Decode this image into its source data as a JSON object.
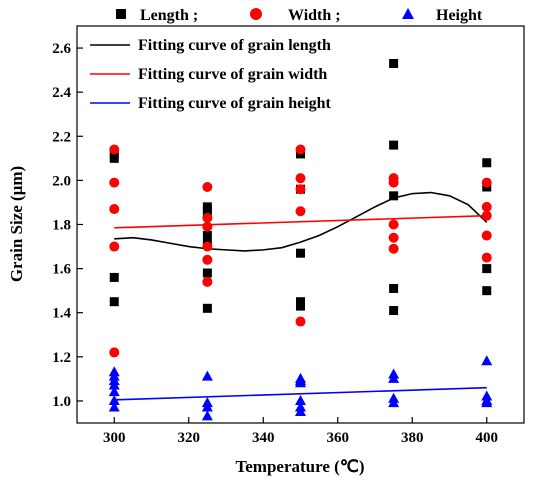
{
  "chart_data": {
    "type": "scatter",
    "title": "",
    "xlabel": "Temperature (℃)",
    "ylabel": "Grain Size (μm)",
    "xlim": [
      290,
      410
    ],
    "ylim": [
      0.9,
      2.7
    ],
    "xticks": [
      300,
      320,
      340,
      360,
      380,
      400
    ],
    "yticks": [
      1.0,
      1.2,
      1.4,
      1.6,
      1.8,
      2.0,
      2.2,
      2.4,
      2.6
    ],
    "grid": false,
    "legend_position": "top",
    "legend_markers": [
      "Length ;",
      "Width ;",
      "Height"
    ],
    "series": [
      {
        "name": "Length ;",
        "marker": "square",
        "color": "#000000",
        "points": [
          [
            300,
            2.1
          ],
          [
            300,
            2.12
          ],
          [
            300,
            1.56
          ],
          [
            300,
            1.45
          ],
          [
            325,
            1.88
          ],
          [
            325,
            1.86
          ],
          [
            325,
            1.75
          ],
          [
            325,
            1.71
          ],
          [
            325,
            1.58
          ],
          [
            325,
            1.42
          ],
          [
            350,
            2.12
          ],
          [
            350,
            1.96
          ],
          [
            350,
            1.67
          ],
          [
            350,
            1.45
          ],
          [
            350,
            1.43
          ],
          [
            375,
            2.53
          ],
          [
            375,
            2.16
          ],
          [
            375,
            1.93
          ],
          [
            375,
            1.51
          ],
          [
            375,
            1.41
          ],
          [
            400,
            2.08
          ],
          [
            400,
            1.97
          ],
          [
            400,
            1.6
          ],
          [
            400,
            1.5
          ]
        ]
      },
      {
        "name": "Width ;",
        "marker": "circle",
        "color": "#ff0000",
        "points": [
          [
            300,
            2.14
          ],
          [
            300,
            1.99
          ],
          [
            300,
            1.87
          ],
          [
            300,
            1.7
          ],
          [
            300,
            1.22
          ],
          [
            325,
            1.97
          ],
          [
            325,
            1.83
          ],
          [
            325,
            1.79
          ],
          [
            325,
            1.7
          ],
          [
            325,
            1.64
          ],
          [
            325,
            1.54
          ],
          [
            350,
            2.14
          ],
          [
            350,
            2.01
          ],
          [
            350,
            1.96
          ],
          [
            350,
            1.86
          ],
          [
            350,
            1.36
          ],
          [
            375,
            2.01
          ],
          [
            375,
            1.99
          ],
          [
            375,
            1.8
          ],
          [
            375,
            1.74
          ],
          [
            375,
            1.69
          ],
          [
            400,
            1.99
          ],
          [
            400,
            1.88
          ],
          [
            400,
            1.84
          ],
          [
            400,
            1.75
          ],
          [
            400,
            1.65
          ]
        ]
      },
      {
        "name": "Height",
        "marker": "triangle",
        "color": "#0000ff",
        "points": [
          [
            300,
            1.13
          ],
          [
            300,
            1.11
          ],
          [
            300,
            1.09
          ],
          [
            300,
            1.07
          ],
          [
            300,
            1.04
          ],
          [
            300,
            1.0
          ],
          [
            300,
            0.97
          ],
          [
            325,
            1.11
          ],
          [
            325,
            0.99
          ],
          [
            325,
            0.97
          ],
          [
            325,
            0.93
          ],
          [
            350,
            1.1
          ],
          [
            350,
            1.09
          ],
          [
            350,
            1.08
          ],
          [
            350,
            1.0
          ],
          [
            350,
            0.97
          ],
          [
            350,
            0.95
          ],
          [
            375,
            1.12
          ],
          [
            375,
            1.1
          ],
          [
            375,
            1.01
          ],
          [
            375,
            0.99
          ],
          [
            400,
            1.18
          ],
          [
            400,
            1.02
          ],
          [
            400,
            1.0
          ],
          [
            400,
            0.99
          ]
        ]
      }
    ],
    "fits": [
      {
        "name": "Fitting curve of grain length",
        "color": "#000000",
        "points": [
          [
            300,
            1.735
          ],
          [
            305,
            1.74
          ],
          [
            310,
            1.73
          ],
          [
            315,
            1.715
          ],
          [
            320,
            1.7
          ],
          [
            325,
            1.69
          ],
          [
            330,
            1.685
          ],
          [
            335,
            1.68
          ],
          [
            340,
            1.685
          ],
          [
            345,
            1.695
          ],
          [
            350,
            1.72
          ],
          [
            355,
            1.75
          ],
          [
            360,
            1.79
          ],
          [
            365,
            1.835
          ],
          [
            370,
            1.88
          ],
          [
            375,
            1.92
          ],
          [
            380,
            1.94
          ],
          [
            385,
            1.945
          ],
          [
            390,
            1.93
          ],
          [
            395,
            1.89
          ],
          [
            400,
            1.81
          ]
        ]
      },
      {
        "name": "Fitting curve of grain width",
        "color": "#ff0000",
        "points": [
          [
            300,
            1.785
          ],
          [
            400,
            1.84
          ]
        ]
      },
      {
        "name": "Fitting curve of grain height",
        "color": "#0000ff",
        "points": [
          [
            300,
            1.005
          ],
          [
            400,
            1.06
          ]
        ]
      }
    ]
  }
}
